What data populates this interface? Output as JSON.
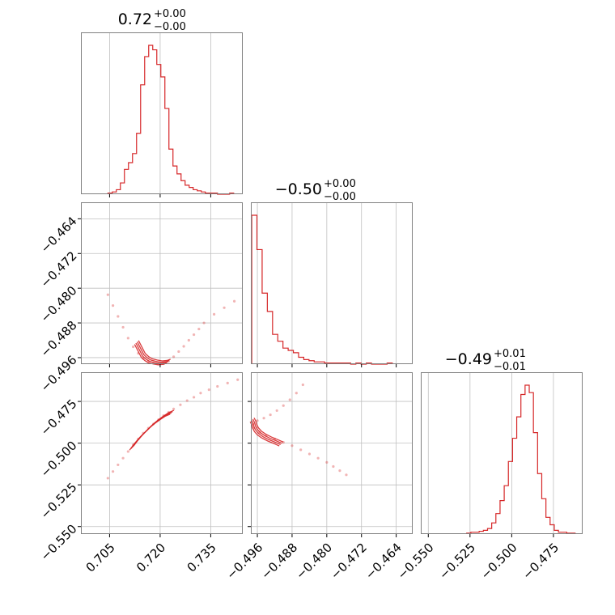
{
  "chart_data": {
    "type": "corner",
    "color": "#d62728",
    "grid": true,
    "titles": [
      {
        "value": "0.72",
        "upper": "+0.00",
        "lower": "−0.00"
      },
      {
        "value": "−0.50",
        "upper": "+0.00",
        "lower": "−0.00"
      },
      {
        "value": "−0.49",
        "upper": "+0.01",
        "lower": "−0.01"
      }
    ],
    "params": [
      {
        "range": [
          0.6965,
          0.7445
        ],
        "ticks": [
          0.705,
          0.72,
          0.735
        ],
        "tick_labels": [
          "0.705",
          "0.720",
          "0.735"
        ]
      },
      {
        "range": [
          -0.4975,
          -0.4602
        ],
        "ticks": [
          -0.496,
          -0.488,
          -0.48,
          -0.472,
          -0.464
        ],
        "tick_labels": [
          "−0.496",
          "−0.488",
          "−0.480",
          "−0.472",
          "−0.464"
        ]
      },
      {
        "range": [
          -0.5545,
          -0.4575
        ],
        "ticks": [
          -0.55,
          -0.525,
          -0.5,
          -0.475
        ],
        "tick_labels": [
          "−0.550",
          "−0.525",
          "−0.500",
          "−0.475"
        ]
      }
    ],
    "histograms": [
      {
        "edges": [
          0.7045,
          0.7058,
          0.707,
          0.7082,
          0.7094,
          0.7106,
          0.7118,
          0.713,
          0.7142,
          0.7154,
          0.7166,
          0.7178,
          0.719,
          0.7202,
          0.7214,
          0.7226,
          0.7238,
          0.725,
          0.7262,
          0.7274,
          0.7286,
          0.7298,
          0.731,
          0.7322,
          0.7334,
          0.7346,
          0.7358,
          0.737,
          0.7382,
          0.7394,
          0.7406,
          0.7418
        ],
        "counts": [
          1,
          2,
          4,
          10,
          22,
          28,
          36,
          54,
          97,
          122,
          132,
          128,
          115,
          104,
          76,
          40,
          25,
          18,
          12,
          8,
          6,
          4,
          3,
          2,
          1,
          1,
          1,
          0,
          0,
          0,
          1
        ]
      },
      {
        "edges": [
          -0.4973,
          -0.4961,
          -0.4949,
          -0.4937,
          -0.4925,
          -0.4913,
          -0.4901,
          -0.4889,
          -0.4877,
          -0.4865,
          -0.4853,
          -0.4841,
          -0.4829,
          -0.4817,
          -0.4805,
          -0.4793,
          -0.4781,
          -0.4769,
          -0.4757,
          -0.4745,
          -0.4733,
          -0.4721,
          -0.4709,
          -0.4697,
          -0.4685,
          -0.4673,
          -0.4661,
          -0.4649
        ],
        "counts": [
          130,
          100,
          62,
          46,
          26,
          20,
          14,
          12,
          10,
          6,
          4,
          3,
          2,
          2,
          1,
          1,
          1,
          1,
          1,
          0,
          1,
          0,
          1,
          0,
          0,
          0,
          1
        ]
      },
      {
        "edges": [
          -0.527,
          -0.5245,
          -0.522,
          -0.5195,
          -0.517,
          -0.5145,
          -0.512,
          -0.5095,
          -0.507,
          -0.5045,
          -0.502,
          -0.4995,
          -0.497,
          -0.4945,
          -0.492,
          -0.4895,
          -0.487,
          -0.4845,
          -0.482,
          -0.4795,
          -0.477,
          -0.4745,
          -0.472,
          -0.4695,
          -0.467,
          -0.4645,
          -0.462
        ],
        "counts": [
          1,
          2,
          2,
          3,
          4,
          6,
          12,
          22,
          36,
          52,
          78,
          103,
          126,
          150,
          160,
          152,
          109,
          65,
          38,
          18,
          10,
          4,
          2,
          2,
          1,
          1
        ]
      }
    ],
    "pairs": [
      {
        "i": 0,
        "j": 1,
        "samples": [
          [
            0.7045,
            -0.4815
          ],
          [
            0.706,
            -0.484
          ],
          [
            0.7075,
            -0.4865
          ],
          [
            0.709,
            -0.489
          ],
          [
            0.7105,
            -0.4915
          ],
          [
            0.712,
            -0.4935
          ],
          [
            0.7135,
            -0.495
          ],
          [
            0.715,
            -0.4962
          ],
          [
            0.7165,
            -0.4968
          ],
          [
            0.718,
            -0.4972
          ],
          [
            0.7195,
            -0.4974
          ],
          [
            0.721,
            -0.4974
          ],
          [
            0.7225,
            -0.4968
          ],
          [
            0.724,
            -0.4958
          ],
          [
            0.7255,
            -0.4946
          ],
          [
            0.727,
            -0.4934
          ],
          [
            0.7285,
            -0.492
          ],
          [
            0.73,
            -0.4907
          ],
          [
            0.7315,
            -0.4894
          ],
          [
            0.733,
            -0.488
          ],
          [
            0.736,
            -0.486
          ],
          [
            0.739,
            -0.4845
          ],
          [
            0.742,
            -0.483
          ]
        ],
        "core": [
          [
            0.713,
            -0.4925
          ],
          [
            0.714,
            -0.494
          ],
          [
            0.715,
            -0.4955
          ],
          [
            0.716,
            -0.4962
          ],
          [
            0.717,
            -0.4967
          ],
          [
            0.7185,
            -0.497
          ],
          [
            0.72,
            -0.4972
          ],
          [
            0.7215,
            -0.4971
          ],
          [
            0.7225,
            -0.4968
          ]
        ]
      },
      {
        "i": 0,
        "j": 2,
        "samples": [
          [
            0.7045,
            -0.521
          ],
          [
            0.706,
            -0.517
          ],
          [
            0.7075,
            -0.513
          ],
          [
            0.709,
            -0.509
          ],
          [
            0.7105,
            -0.505
          ],
          [
            0.712,
            -0.501
          ],
          [
            0.7135,
            -0.4975
          ],
          [
            0.715,
            -0.494
          ],
          [
            0.7165,
            -0.491
          ],
          [
            0.718,
            -0.4885
          ],
          [
            0.7195,
            -0.486
          ],
          [
            0.721,
            -0.4835
          ],
          [
            0.7225,
            -0.4815
          ],
          [
            0.724,
            -0.4795
          ],
          [
            0.726,
            -0.477
          ],
          [
            0.728,
            -0.4745
          ],
          [
            0.73,
            -0.4725
          ],
          [
            0.732,
            -0.47
          ],
          [
            0.7345,
            -0.468
          ],
          [
            0.737,
            -0.466
          ],
          [
            0.74,
            -0.464
          ],
          [
            0.743,
            -0.462
          ]
        ],
        "core": [
          [
            0.7115,
            -0.503
          ],
          [
            0.713,
            -0.499
          ],
          [
            0.7145,
            -0.4955
          ],
          [
            0.716,
            -0.4925
          ],
          [
            0.7175,
            -0.4895
          ],
          [
            0.719,
            -0.487
          ],
          [
            0.7205,
            -0.4848
          ],
          [
            0.722,
            -0.4828
          ],
          [
            0.7235,
            -0.4815
          ]
        ]
      },
      {
        "i": 1,
        "j": 2,
        "samples": [
          [
            -0.4855,
            -0.465
          ],
          [
            -0.487,
            -0.47
          ],
          [
            -0.4885,
            -0.474
          ],
          [
            -0.49,
            -0.4775
          ],
          [
            -0.4915,
            -0.4805
          ],
          [
            -0.493,
            -0.483
          ],
          [
            -0.4945,
            -0.485
          ],
          [
            -0.496,
            -0.4865
          ],
          [
            -0.497,
            -0.4885
          ],
          [
            -0.4968,
            -0.491
          ],
          [
            -0.4955,
            -0.4935
          ],
          [
            -0.494,
            -0.4955
          ],
          [
            -0.492,
            -0.4975
          ],
          [
            -0.49,
            -0.4995
          ],
          [
            -0.488,
            -0.5015
          ],
          [
            -0.486,
            -0.504
          ],
          [
            -0.484,
            -0.5065
          ],
          [
            -0.482,
            -0.509
          ],
          [
            -0.48,
            -0.5115
          ],
          [
            -0.4785,
            -0.514
          ],
          [
            -0.477,
            -0.5165
          ],
          [
            -0.4755,
            -0.519
          ]
        ],
        "core": [
          [
            -0.4972,
            -0.486
          ],
          [
            -0.4968,
            -0.488
          ],
          [
            -0.4966,
            -0.49
          ],
          [
            -0.4962,
            -0.492
          ],
          [
            -0.4955,
            -0.494
          ],
          [
            -0.4945,
            -0.4958
          ],
          [
            -0.4932,
            -0.4975
          ],
          [
            -0.4918,
            -0.499
          ],
          [
            -0.4905,
            -0.5005
          ]
        ]
      }
    ]
  }
}
